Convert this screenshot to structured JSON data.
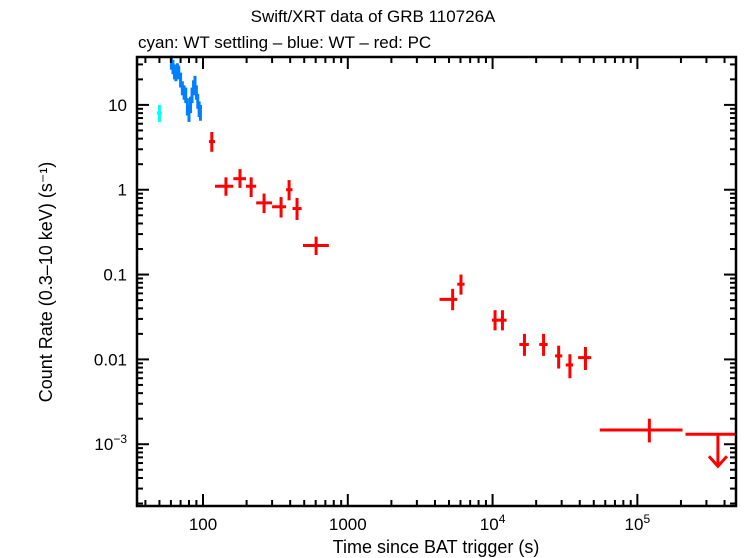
{
  "chart_data": {
    "type": "scatter",
    "title": "Swift/XRT data of GRB 110726A",
    "subtitle": "cyan: WT settling – blue: WT – red: PC",
    "xlabel": "Time since BAT trigger (s)",
    "ylabel": "Count Rate (0.3–10 keV) (s⁻¹)",
    "xscale": "log",
    "yscale": "log",
    "xlim": [
      35,
      480000
    ],
    "ylim": [
      0.000187,
      36.7
    ],
    "grid": false,
    "legend": "none",
    "x_ticks": [
      {
        "value": 100,
        "label": "100"
      },
      {
        "value": 1000,
        "label": "1000"
      },
      {
        "value": 10000,
        "label": "10",
        "sup": "4"
      },
      {
        "value": 100000,
        "label": "10",
        "sup": "5"
      }
    ],
    "y_ticks": [
      {
        "value": 10,
        "label": "10"
      },
      {
        "value": 1,
        "label": "1"
      },
      {
        "value": 0.1,
        "label": "0.1"
      },
      {
        "value": 0.01,
        "label": "0.01"
      },
      {
        "value": 0.001,
        "label": "10",
        "sup": "−3"
      }
    ],
    "series": [
      {
        "name": "WT settling",
        "color": "#00ffff",
        "points": [
          {
            "x": 50,
            "xlo": 48,
            "xhi": 52,
            "y": 8.0,
            "ylo": 6.3,
            "yhi": 10.0
          }
        ]
      },
      {
        "name": "WT",
        "color": "#0080ff",
        "points": [
          {
            "x": 60.5,
            "xlo": 60,
            "xhi": 61,
            "y": 32,
            "ylo": 26,
            "yhi": 38
          },
          {
            "x": 62,
            "xlo": 61,
            "xhi": 63,
            "y": 28,
            "ylo": 23,
            "yhi": 34
          },
          {
            "x": 63.5,
            "xlo": 63,
            "xhi": 64,
            "y": 25,
            "ylo": 20,
            "yhi": 30
          },
          {
            "x": 65,
            "xlo": 64,
            "xhi": 66,
            "y": 23,
            "ylo": 19,
            "yhi": 28
          },
          {
            "x": 66.5,
            "xlo": 66,
            "xhi": 67,
            "y": 26,
            "ylo": 21,
            "yhi": 31
          },
          {
            "x": 68,
            "xlo": 67,
            "xhi": 69,
            "y": 24,
            "ylo": 20,
            "yhi": 29
          },
          {
            "x": 70,
            "xlo": 69,
            "xhi": 71,
            "y": 20,
            "ylo": 16,
            "yhi": 24
          },
          {
            "x": 72,
            "xlo": 71,
            "xhi": 73,
            "y": 16,
            "ylo": 13,
            "yhi": 19
          },
          {
            "x": 74,
            "xlo": 73,
            "xhi": 75,
            "y": 14,
            "ylo": 11.5,
            "yhi": 17
          },
          {
            "x": 76,
            "xlo": 75,
            "xhi": 77,
            "y": 13,
            "ylo": 10.5,
            "yhi": 16
          },
          {
            "x": 78,
            "xlo": 77,
            "xhi": 79,
            "y": 9.5,
            "ylo": 7.5,
            "yhi": 12
          },
          {
            "x": 80,
            "xlo": 79,
            "xhi": 81,
            "y": 8.0,
            "ylo": 6.3,
            "yhi": 10
          },
          {
            "x": 82,
            "xlo": 81,
            "xhi": 83,
            "y": 10,
            "ylo": 8,
            "yhi": 12.5
          },
          {
            "x": 84,
            "xlo": 83,
            "xhi": 85,
            "y": 13,
            "ylo": 10.5,
            "yhi": 16
          },
          {
            "x": 86,
            "xlo": 85,
            "xhi": 87,
            "y": 16,
            "ylo": 13,
            "yhi": 19.5
          },
          {
            "x": 88,
            "xlo": 87,
            "xhi": 89,
            "y": 18,
            "ylo": 14.5,
            "yhi": 22
          },
          {
            "x": 90,
            "xlo": 89,
            "xhi": 91,
            "y": 14,
            "ylo": 11.5,
            "yhi": 17
          },
          {
            "x": 92,
            "xlo": 91,
            "xhi": 93,
            "y": 11,
            "ylo": 9,
            "yhi": 13.5
          },
          {
            "x": 94,
            "xlo": 93,
            "xhi": 95,
            "y": 9,
            "ylo": 7.2,
            "yhi": 11
          },
          {
            "x": 96,
            "xlo": 95,
            "xhi": 97,
            "y": 8.0,
            "ylo": 6.5,
            "yhi": 10
          }
        ]
      },
      {
        "name": "PC",
        "color": "#ff0000",
        "points": [
          {
            "x": 115,
            "xlo": 110,
            "xhi": 121,
            "y": 3.7,
            "ylo": 2.8,
            "yhi": 4.8
          },
          {
            "x": 144,
            "xlo": 121,
            "xhi": 162,
            "y": 1.1,
            "ylo": 0.85,
            "yhi": 1.4
          },
          {
            "x": 180,
            "xlo": 162,
            "xhi": 198,
            "y": 1.35,
            "ylo": 1.05,
            "yhi": 1.75
          },
          {
            "x": 215,
            "xlo": 198,
            "xhi": 233,
            "y": 1.1,
            "ylo": 0.82,
            "yhi": 1.4
          },
          {
            "x": 264,
            "xlo": 233,
            "xhi": 300,
            "y": 0.7,
            "ylo": 0.53,
            "yhi": 0.9
          },
          {
            "x": 346,
            "xlo": 300,
            "xhi": 375,
            "y": 0.63,
            "ylo": 0.47,
            "yhi": 0.82
          },
          {
            "x": 393,
            "xlo": 375,
            "xhi": 415,
            "y": 1.0,
            "ylo": 0.75,
            "yhi": 1.3
          },
          {
            "x": 446,
            "xlo": 415,
            "xhi": 480,
            "y": 0.6,
            "ylo": 0.44,
            "yhi": 0.8
          },
          {
            "x": 604,
            "xlo": 490,
            "xhi": 740,
            "y": 0.22,
            "ylo": 0.17,
            "yhi": 0.28
          },
          {
            "x": 5300,
            "xlo": 4300,
            "xhi": 5700,
            "y": 0.051,
            "ylo": 0.038,
            "yhi": 0.068
          },
          {
            "x": 6050,
            "xlo": 5700,
            "xhi": 6400,
            "y": 0.077,
            "ylo": 0.058,
            "yhi": 0.1
          },
          {
            "x": 10400,
            "xlo": 9900,
            "xhi": 11000,
            "y": 0.029,
            "ylo": 0.022,
            "yhi": 0.038
          },
          {
            "x": 11700,
            "xlo": 11000,
            "xhi": 12500,
            "y": 0.029,
            "ylo": 0.022,
            "yhi": 0.038
          },
          {
            "x": 16600,
            "xlo": 15300,
            "xhi": 17800,
            "y": 0.015,
            "ylo": 0.011,
            "yhi": 0.02
          },
          {
            "x": 22500,
            "xlo": 21000,
            "xhi": 24000,
            "y": 0.015,
            "ylo": 0.011,
            "yhi": 0.02
          },
          {
            "x": 28600,
            "xlo": 27000,
            "xhi": 30300,
            "y": 0.011,
            "ylo": 0.0078,
            "yhi": 0.0145
          },
          {
            "x": 34200,
            "xlo": 32000,
            "xhi": 36000,
            "y": 0.0086,
            "ylo": 0.006,
            "yhi": 0.0115
          },
          {
            "x": 43800,
            "xlo": 39000,
            "xhi": 48000,
            "y": 0.0105,
            "ylo": 0.0075,
            "yhi": 0.014
          },
          {
            "x": 121000,
            "xlo": 55000,
            "xhi": 205000,
            "y": 0.00147,
            "ylo": 0.00105,
            "yhi": 0.002
          }
        ],
        "upper_limits": [
          {
            "x": 360000,
            "xlo": 215000,
            "xhi": 480000,
            "y": 0.00131
          }
        ]
      }
    ]
  }
}
